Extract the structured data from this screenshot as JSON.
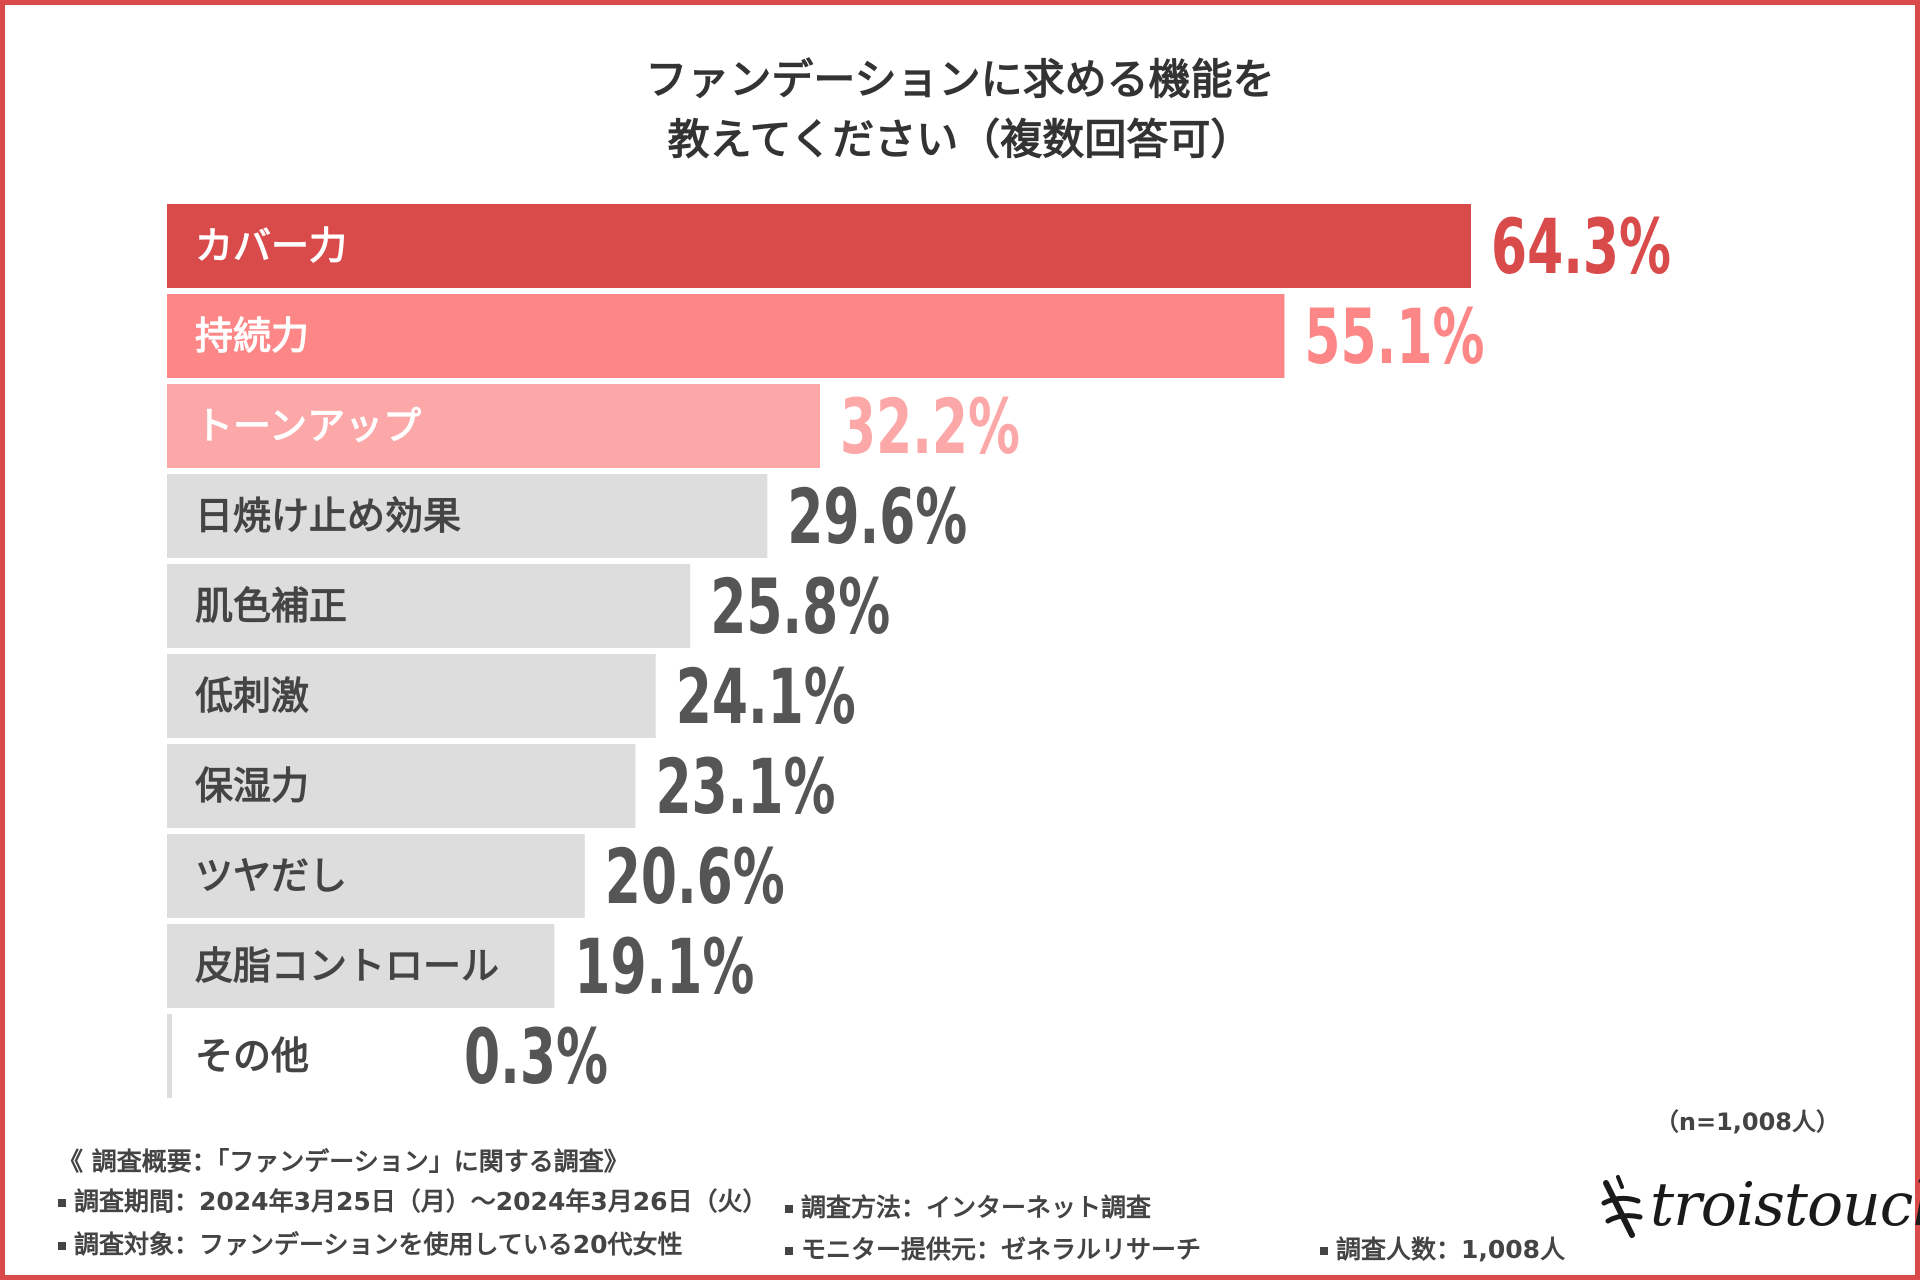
{
  "title": {
    "line1": "ファンデーションに求める機能を",
    "line2": "教えてください（複数回答可）"
  },
  "colors": {
    "frame": "#d94a4b",
    "rank1": "#d94a4b",
    "rank2": "#fd8787",
    "rank3": "#fda8a8",
    "rank1_text": "#d94a4b",
    "rank2_text": "#fd8787",
    "rank3_text": "#fda8a8",
    "other_bar": "#dddddd",
    "other_text": "#555555"
  },
  "chart_data": {
    "type": "bar",
    "orientation": "horizontal",
    "categories": [
      "カバー力",
      "持続力",
      "トーンアップ",
      "日焼け止め効果",
      "肌色補正",
      "低刺激",
      "保湿力",
      "ツヤだし",
      "皮脂コントロール",
      "その他"
    ],
    "values": [
      64.3,
      55.1,
      32.2,
      29.6,
      25.8,
      24.1,
      23.1,
      20.6,
      19.1,
      0.3
    ],
    "value_labels": [
      "64.3%",
      "55.1%",
      "32.2%",
      "29.6%",
      "25.8%",
      "24.1%",
      "23.1%",
      "20.6%",
      "19.1%",
      "0.3%"
    ],
    "unit": "%",
    "title": "ファンデーションに求める機能を教えてください（複数回答可）",
    "xlim": [
      0,
      100
    ]
  },
  "sample_size": "（n=1,008人）",
  "footer": {
    "heading": "《 調査概要：「ファンデーション」に関する調査》",
    "period": "調査期間：2024年3月25日（月）～2024年3月26日（火）",
    "target": "調査対象：ファンデーションを使用している20代女性",
    "method": "調査方法：インターネット調査",
    "provider": "モニター提供元：ゼネラルリサーチ",
    "count": "調査人数：1,008人"
  },
  "logo": {
    "text": "troistouch",
    "icon": "sparkle-cross-icon"
  }
}
